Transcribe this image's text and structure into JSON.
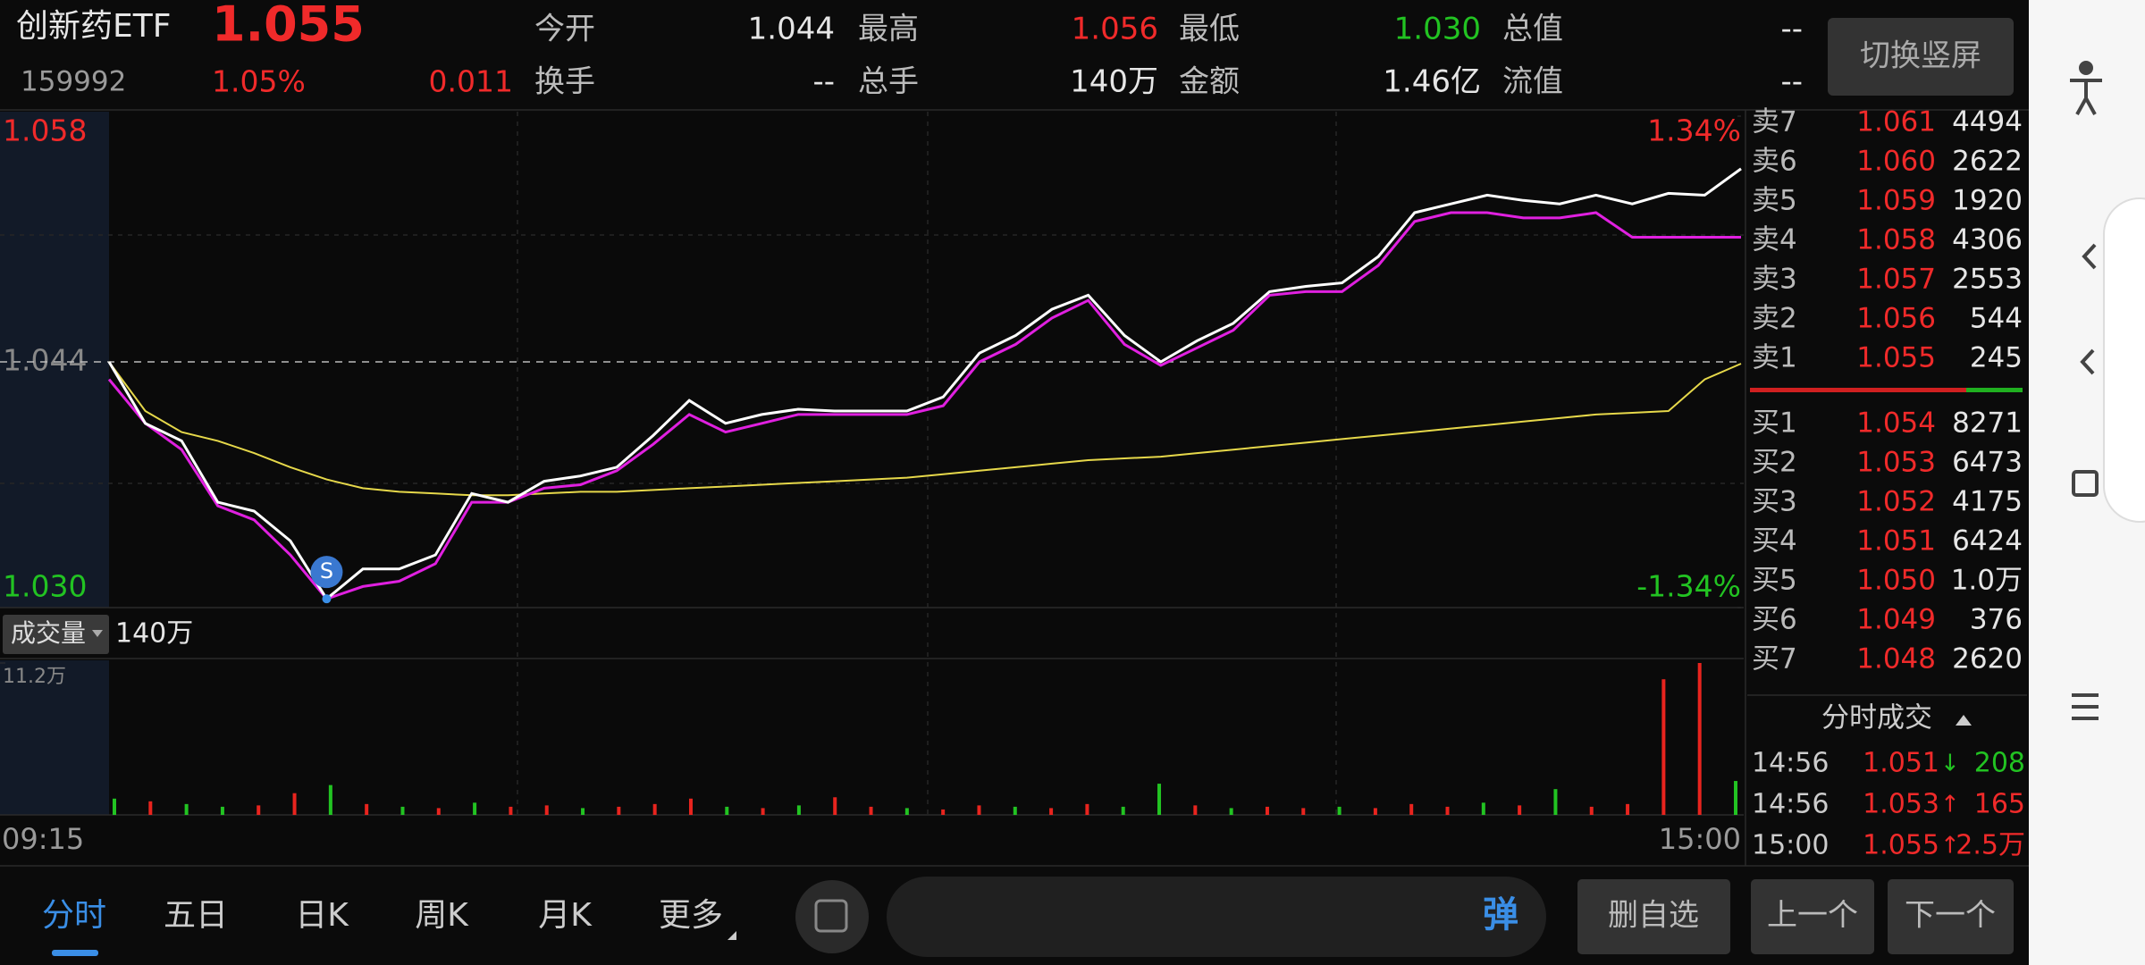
{
  "header": {
    "name": "创新药ETF",
    "price": "1.055",
    "code": "159992",
    "change_pct": "1.05%",
    "change": "0.011",
    "fields": [
      {
        "label": "今开",
        "value": "1.044"
      },
      {
        "label": "最高",
        "value": "1.056"
      },
      {
        "label": "最低",
        "value": "1.030"
      },
      {
        "label": "总值",
        "value": "--"
      },
      {
        "label": "换手",
        "value": "--"
      },
      {
        "label": "总手",
        "value": "140万"
      },
      {
        "label": "金额",
        "value": "1.46亿"
      },
      {
        "label": "流值",
        "value": "--"
      }
    ],
    "switch_button": "切换竖屏"
  },
  "chart_data": [
    {
      "type": "line",
      "ylim": [
        1.03,
        1.058
      ],
      "yticks": [
        1.058,
        1.044,
        {
          "value": 1.03,
          "label": "1.030"
        }
      ],
      "y2lim": [
        -1.34,
        1.34
      ],
      "y2ticks": [
        {
          "value": 1.34,
          "label": "1.34%"
        },
        {
          "value": -1.34,
          "label": "-1.34%"
        }
      ],
      "x_tick_labels": [
        "09:15",
        "15:00"
      ],
      "marker_label": "S",
      "series": [
        {
          "color": "#ffffff",
          "values": [
            1.044,
            1.0405,
            1.0395,
            1.036,
            1.0355,
            1.0338,
            1.0305,
            1.0322,
            1.0322,
            1.033,
            1.0365,
            1.036,
            1.0372,
            1.0375,
            1.038,
            1.0398,
            1.0418,
            1.0405,
            1.041,
            1.0413,
            1.0412,
            1.0412,
            1.0412,
            1.042,
            1.0445,
            1.0455,
            1.047,
            1.0478,
            1.0455,
            1.044,
            1.0452,
            1.0462,
            1.048,
            1.0483,
            1.0485,
            1.05,
            1.0525,
            1.053,
            1.0535,
            1.0532,
            1.053,
            1.0535,
            1.053,
            1.0536,
            1.0535,
            1.055
          ]
        },
        {
          "color": "#e020e0",
          "values": [
            1.043,
            1.0405,
            1.039,
            1.0358,
            1.035,
            1.033,
            1.0305,
            1.0312,
            1.0315,
            1.0325,
            1.036,
            1.036,
            1.0368,
            1.037,
            1.0378,
            1.0393,
            1.041,
            1.04,
            1.0405,
            1.041,
            1.041,
            1.041,
            1.041,
            1.0415,
            1.044,
            1.045,
            1.0465,
            1.0475,
            1.045,
            1.0438,
            1.0448,
            1.0458,
            1.0478,
            1.048,
            1.048,
            1.0495,
            1.052,
            1.0525,
            1.0525,
            1.0522,
            1.0522,
            1.0525,
            1.0511,
            1.0511,
            1.0511,
            1.0511
          ]
        },
        {
          "color": "#e6d84a",
          "values": [
            1.044,
            1.0412,
            1.04,
            1.0395,
            1.0388,
            1.038,
            1.0373,
            1.0368,
            1.0366,
            1.0365,
            1.0364,
            1.0364,
            1.0365,
            1.0366,
            1.0366,
            1.0367,
            1.0368,
            1.0369,
            1.037,
            1.0371,
            1.0372,
            1.0373,
            1.0374,
            1.0376,
            1.0378,
            1.038,
            1.0382,
            1.0384,
            1.0385,
            1.0386,
            1.0388,
            1.039,
            1.0392,
            1.0394,
            1.0396,
            1.0398,
            1.04,
            1.0402,
            1.0404,
            1.0406,
            1.0408,
            1.041,
            1.0411,
            1.0412,
            1.043,
            1.0439
          ]
        }
      ]
    },
    {
      "type": "bar",
      "title": "成交量",
      "total": "140万",
      "ylim": [
        0,
        11.2
      ],
      "yticks": [
        {
          "value": 11.2,
          "label": "11.2万"
        }
      ],
      "values": [
        1.2,
        1.0,
        0.8,
        0.6,
        0.7,
        1.6,
        2.2,
        0.8,
        0.6,
        0.5,
        0.9,
        0.6,
        0.7,
        0.5,
        0.6,
        0.8,
        1.2,
        0.6,
        0.5,
        0.7,
        1.3,
        0.6,
        0.5,
        0.4,
        0.7,
        0.6,
        0.5,
        0.8,
        0.6,
        2.3,
        0.7,
        0.5,
        0.6,
        0.5,
        0.6,
        0.5,
        0.8,
        0.6,
        0.9,
        0.7,
        1.9,
        0.6,
        0.8,
        10.0,
        11.2,
        2.5
      ],
      "colors": [
        "#22c322",
        "#e8241e",
        "#22c322",
        "#22c322",
        "#e8241e",
        "#e8241e",
        "#22c322",
        "#e8241e",
        "#22c322",
        "#e8241e",
        "#22c322",
        "#e8241e",
        "#e8241e",
        "#22c322",
        "#e8241e",
        "#e8241e",
        "#e8241e",
        "#22c322",
        "#e8241e",
        "#22c322",
        "#e8241e",
        "#e8241e",
        "#22c322",
        "#e8241e",
        "#e8241e",
        "#22c322",
        "#e8241e",
        "#e8241e",
        "#22c322",
        "#22c322",
        "#e8241e",
        "#22c322",
        "#e8241e",
        "#e8241e",
        "#22c322",
        "#e8241e",
        "#e8241e",
        "#e8241e",
        "#22c322",
        "#e8241e",
        "#22c322",
        "#e8241e",
        "#e8241e",
        "#e8241e",
        "#e8241e",
        "#22c322"
      ]
    }
  ],
  "order_book": {
    "asks": [
      {
        "label": "卖7",
        "price": "1.061",
        "volume": "4494"
      },
      {
        "label": "卖6",
        "price": "1.060",
        "volume": "2622"
      },
      {
        "label": "卖5",
        "price": "1.059",
        "volume": "1920"
      },
      {
        "label": "卖4",
        "price": "1.058",
        "volume": "4306"
      },
      {
        "label": "卖3",
        "price": "1.057",
        "volume": "2553"
      },
      {
        "label": "卖2",
        "price": "1.056",
        "volume": "544"
      },
      {
        "label": "卖1",
        "price": "1.055",
        "volume": "245"
      }
    ],
    "bids": [
      {
        "label": "买1",
        "price": "1.054",
        "volume": "8271"
      },
      {
        "label": "买2",
        "price": "1.053",
        "volume": "6473"
      },
      {
        "label": "买3",
        "price": "1.052",
        "volume": "4175"
      },
      {
        "label": "买4",
        "price": "1.051",
        "volume": "6424"
      },
      {
        "label": "买5",
        "price": "1.050",
        "volume": "1.0万"
      },
      {
        "label": "买6",
        "price": "1.049",
        "volume": "376"
      },
      {
        "label": "买7",
        "price": "1.048",
        "volume": "2620"
      }
    ]
  },
  "trades": {
    "title": "分时成交",
    "rows": [
      {
        "time": "14:56",
        "price": "1.051",
        "arrow": "↓",
        "volume": "208"
      },
      {
        "time": "14:56",
        "price": "1.053",
        "arrow": "↑",
        "volume": "165"
      },
      {
        "time": "15:00",
        "price": "1.055",
        "arrow": "↑",
        "volume": "2.5万"
      }
    ]
  },
  "tabs": [
    "分时",
    "五日",
    "日K",
    "周K",
    "月K",
    "更多"
  ],
  "danmu_button": "弹",
  "buttons": [
    "删自选",
    "上一个",
    "下一个"
  ]
}
